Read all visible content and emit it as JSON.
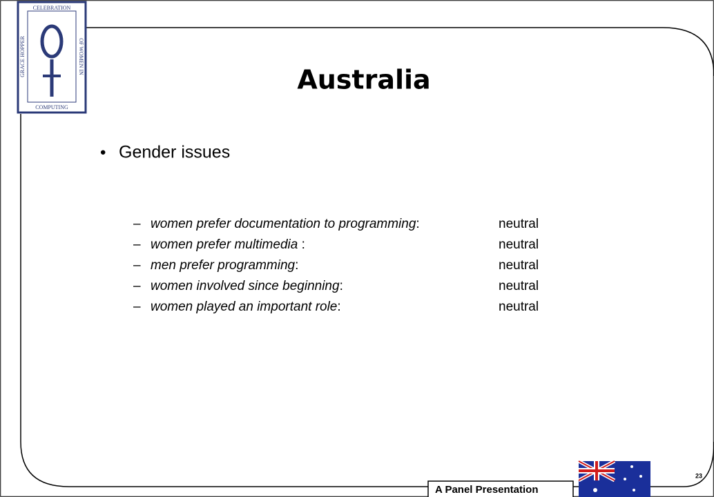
{
  "logo": {
    "top": "CELEBRATION",
    "right": "OF WOMEN IN",
    "left": "GRACE HOPPER",
    "bottom": "COMPUTING"
  },
  "title": "Australia",
  "bullet": "Gender issues",
  "items": [
    {
      "text": "women prefer documentation to programming",
      "sep": ":",
      "value": "neutral"
    },
    {
      "text": "women prefer multimedia",
      "sep": " :",
      "value": "neutral"
    },
    {
      "text": "men prefer programming",
      "sep": ":",
      "value": "neutral"
    },
    {
      "text": "women involved since beginning",
      "sep": ":",
      "value": "neutral"
    },
    {
      "text": "women played an important role",
      "sep": ":",
      "value": "neutral"
    }
  ],
  "footer": "A Panel Presentation",
  "page_number": "23"
}
